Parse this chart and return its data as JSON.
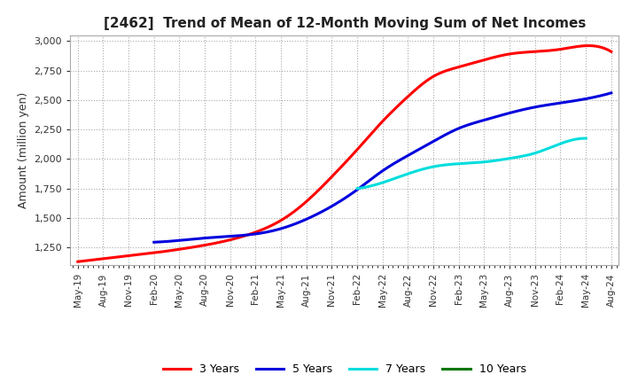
{
  "title": "[2462]  Trend of Mean of 12-Month Moving Sum of Net Incomes",
  "ylabel": "Amount (million yen)",
  "ylim": [
    1100,
    3050
  ],
  "yticks": [
    1250,
    1500,
    1750,
    2000,
    2250,
    2500,
    2750,
    3000
  ],
  "background_color": "#ffffff",
  "grid_color": "#aaaaaa",
  "x_labels": [
    "May-19",
    "Aug-19",
    "Nov-19",
    "Feb-20",
    "May-20",
    "Aug-20",
    "Nov-20",
    "Feb-21",
    "May-21",
    "Aug-21",
    "Nov-21",
    "Feb-22",
    "May-22",
    "Aug-22",
    "Nov-22",
    "Feb-23",
    "May-23",
    "Aug-23",
    "Nov-23",
    "Feb-24",
    "May-24",
    "Aug-24"
  ],
  "series": {
    "3 Years": {
      "color": "#ff0000",
      "data_x": [
        0,
        1,
        2,
        3,
        4,
        5,
        6,
        7,
        8,
        9,
        10,
        11,
        12,
        13,
        14,
        15,
        16,
        17,
        18,
        19,
        20,
        21
      ],
      "data_y": [
        1130,
        1155,
        1180,
        1205,
        1235,
        1270,
        1315,
        1380,
        1480,
        1640,
        1850,
        2080,
        2320,
        2530,
        2700,
        2780,
        2840,
        2890,
        2910,
        2930,
        2960,
        2910
      ]
    },
    "5 Years": {
      "color": "#0000dd",
      "data_x": [
        3,
        4,
        5,
        6,
        7,
        8,
        9,
        10,
        11,
        12,
        13,
        14,
        15,
        16,
        17,
        18,
        19,
        20,
        21
      ],
      "data_y": [
        1295,
        1310,
        1330,
        1345,
        1365,
        1410,
        1490,
        1600,
        1740,
        1900,
        2030,
        2150,
        2260,
        2330,
        2390,
        2440,
        2475,
        2510,
        2560
      ]
    },
    "7 Years": {
      "color": "#00dddd",
      "data_x": [
        11,
        12,
        13,
        14,
        15,
        16,
        17,
        18,
        19,
        20
      ],
      "data_y": [
        1750,
        1800,
        1875,
        1935,
        1960,
        1975,
        2005,
        2050,
        2130,
        2175
      ]
    },
    "10 Years": {
      "color": "#007700",
      "data_x": [],
      "data_y": []
    }
  },
  "legend_labels": [
    "3 Years",
    "5 Years",
    "7 Years",
    "10 Years"
  ],
  "legend_colors": [
    "#ff0000",
    "#0000dd",
    "#00dddd",
    "#007700"
  ]
}
